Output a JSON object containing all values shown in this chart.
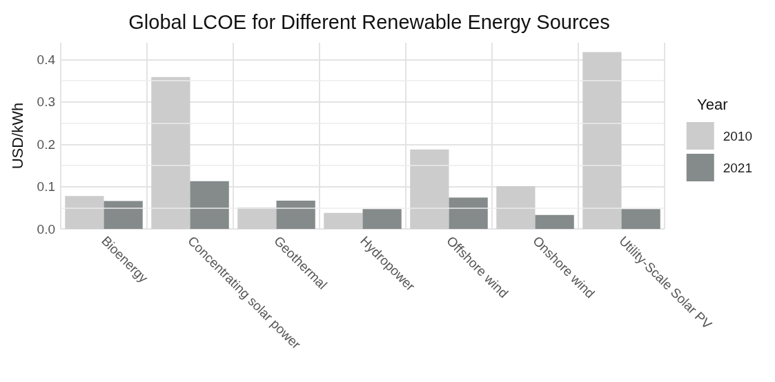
{
  "chart_data": {
    "type": "bar",
    "title": "Global LCOE for Different Renewable Energy Sources",
    "ylabel": "USD/kWh",
    "legend_title": "Year",
    "categories": [
      "Bioenergy",
      "Concentrating solar power",
      "Geothermal",
      "Hydropower",
      "Offshore wind",
      "Onshore wind",
      "Utility-Scale Solar PV"
    ],
    "series": [
      {
        "name": "2010",
        "color": "#cccccc",
        "values": [
          0.078,
          0.359,
          0.051,
          0.038,
          0.188,
          0.101,
          0.418
        ]
      },
      {
        "name": "2021",
        "color": "#848b8a",
        "values": [
          0.066,
          0.113,
          0.067,
          0.047,
          0.074,
          0.033,
          0.047
        ]
      }
    ],
    "ylim": [
      0,
      0.44
    ],
    "yticks": [
      {
        "value": 0,
        "label": "0.0"
      },
      0.1,
      0.2,
      0.3,
      0.4
    ],
    "grid": true,
    "legend": "right"
  }
}
